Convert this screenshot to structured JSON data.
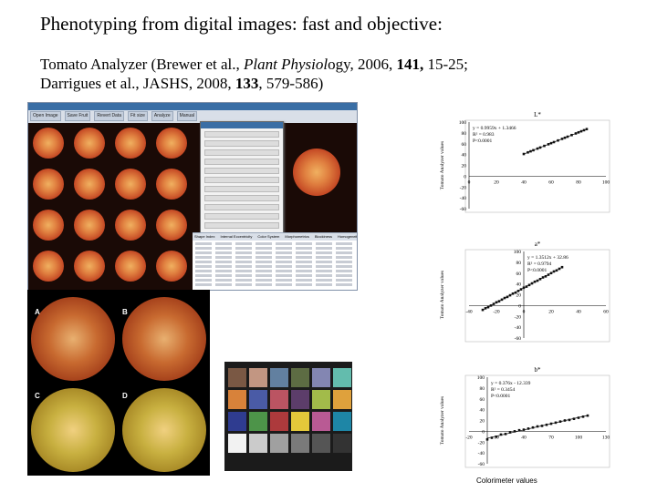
{
  "slide": {
    "title": "Phenotyping from digital images: fast and objective:",
    "citation": {
      "line1_a": "Tomato Analyzer (Brewer et al., ",
      "line1_journal": "Plant Physiol",
      "line1_journal_tail": "ogy",
      "line1_b": ", 2006, ",
      "line1_volume": "141,",
      "line1_c": " 15-25;",
      "line2_a": "Darrigues et al., JASHS, 2008, ",
      "line2_volume": "133",
      "line2_b": ", 579-586)"
    }
  },
  "app": {
    "toolbar": [
      "Open Image",
      "Save Fruit",
      "Revert Data",
      "Fit size",
      "Analyze",
      "Manual"
    ],
    "tabs": [
      "Shape Index",
      "Internal Eccentricity",
      "Color System",
      "Morphometrics",
      "Blockiness",
      "Homogeneity",
      "Proximal Fruit End Shape"
    ]
  },
  "panel": {
    "labels": [
      "A",
      "B",
      "C",
      "D"
    ]
  },
  "checker": {
    "swatches": [
      "#7a5844",
      "#c29682",
      "#6280a0",
      "#5d6c43",
      "#8386b2",
      "#63bcad",
      "#d8823a",
      "#4a5ba6",
      "#bb5462",
      "#5c3d6a",
      "#a2bb4a",
      "#dfa13c",
      "#2f3c90",
      "#4d9449",
      "#ad3a3c",
      "#e3c83a",
      "#b95a94",
      "#1e86a6",
      "#f2f2f2",
      "#cbcbcb",
      "#a0a0a0",
      "#7a7a7a",
      "#555555",
      "#333333"
    ]
  },
  "x_caption": "Colorimeter values",
  "chart_data": [
    {
      "type": "scatter",
      "title": "L*",
      "ylabel": "Tomato Analyzer values",
      "xlim": [
        0,
        100
      ],
      "ylim": [
        -60,
        100
      ],
      "xticks": [
        "0",
        "20",
        "40",
        "60",
        "80",
        "100"
      ],
      "yticks": [
        "100",
        "80",
        "60",
        "40",
        "20",
        "0",
        "-20",
        "-40",
        "-60"
      ],
      "equation": "y = 0.9959x + 1.3466",
      "r2": "R² = 0.983",
      "p": "P<0.0001",
      "x": [
        40,
        43,
        45,
        47,
        50,
        52,
        55,
        58,
        60,
        62,
        65,
        68,
        70,
        72,
        75,
        78,
        80,
        82,
        84,
        86
      ],
      "y": [
        41,
        44,
        46,
        48,
        51,
        53,
        56,
        59,
        61,
        63,
        66,
        69,
        71,
        73,
        76,
        79,
        81,
        83,
        85,
        87
      ]
    },
    {
      "type": "scatter",
      "title": "a*",
      "ylabel": "Tomato Analyzer values",
      "xlim": [
        -40,
        60
      ],
      "ylim": [
        -60,
        100
      ],
      "xticks": [
        "-40",
        "-20",
        "0",
        "20",
        "40",
        "60"
      ],
      "yticks": [
        "100",
        "80",
        "60",
        "40",
        "20",
        "0",
        "-20",
        "-40",
        "-60"
      ],
      "equation": "y = 1.3512x + 32.86",
      "r2": "R² = 0.9794",
      "p": "P<0.0001",
      "x": [
        -30,
        -28,
        -26,
        -24,
        -22,
        -20,
        -18,
        -16,
        -14,
        -12,
        -10,
        -8,
        -6,
        -4,
        -2,
        0,
        2,
        4,
        6,
        8,
        10,
        12,
        14,
        16,
        18,
        20,
        22,
        24,
        26,
        28
      ],
      "y": [
        -8,
        -5,
        -3,
        0,
        3,
        6,
        8,
        11,
        14,
        16,
        19,
        22,
        24,
        27,
        30,
        33,
        35,
        38,
        41,
        44,
        46,
        49,
        52,
        54,
        57,
        60,
        63,
        65,
        68,
        71
      ]
    },
    {
      "type": "scatter",
      "title": "b*",
      "ylabel": "Tomato Analyzer values",
      "xlim": [
        -20,
        130
      ],
      "ylim": [
        -60,
        100
      ],
      "xticks": [
        "-20",
        "10",
        "40",
        "70",
        "100",
        "130"
      ],
      "yticks": [
        "100",
        "80",
        "60",
        "40",
        "20",
        "0",
        "-20",
        "-40",
        "-60"
      ],
      "equation": "y = 0.376x - 12.339",
      "r2": "R² = 0.3454",
      "p": "P<0.0001",
      "x": [
        0,
        5,
        10,
        15,
        20,
        25,
        30,
        35,
        40,
        45,
        50,
        55,
        60,
        65,
        70,
        75,
        80,
        85,
        90,
        95,
        100,
        105,
        110
      ],
      "y": [
        -15,
        -12,
        -10,
        -6,
        -5,
        -2,
        0,
        2,
        3,
        5,
        7,
        9,
        10,
        12,
        14,
        16,
        18,
        20,
        21,
        23,
        25,
        27,
        29
      ]
    }
  ]
}
